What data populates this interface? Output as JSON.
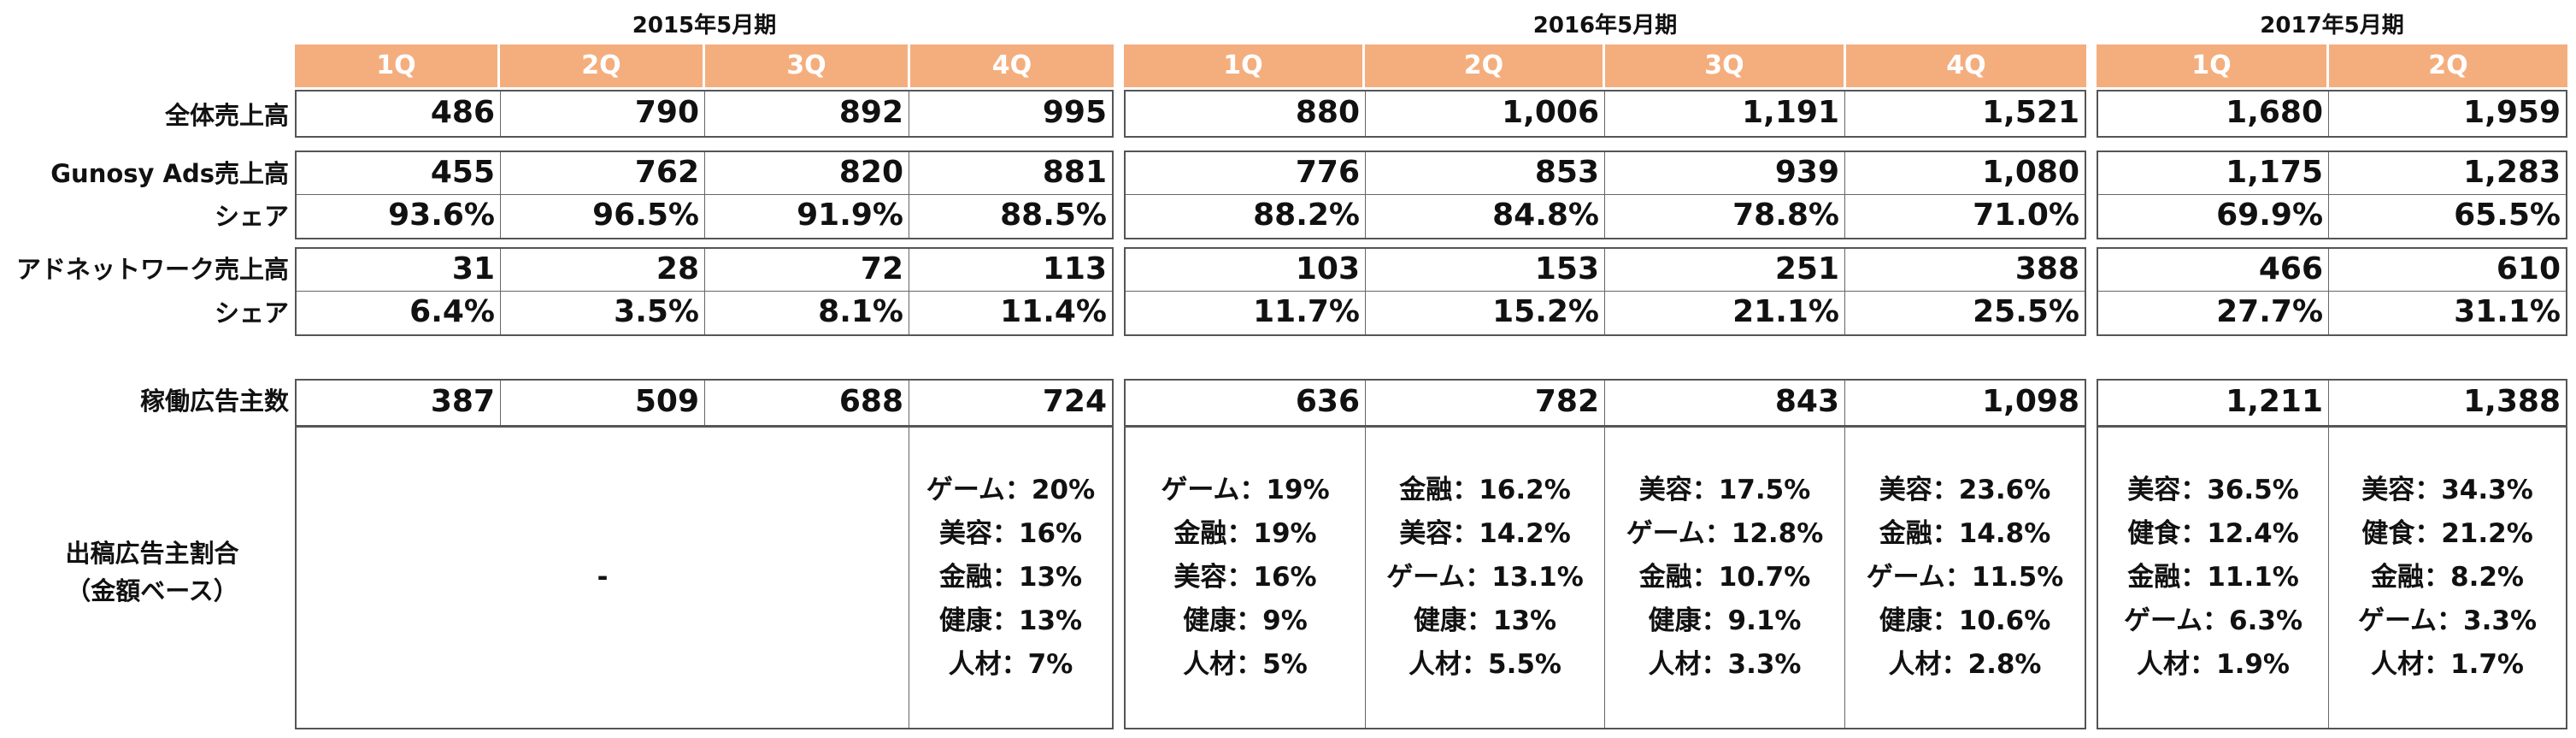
{
  "periods": [
    "2015年5月期",
    "2016年5月期",
    "2017年5月期"
  ],
  "quarters": {
    "fy2015": [
      "1Q",
      "2Q",
      "3Q",
      "4Q"
    ],
    "fy2016": [
      "1Q",
      "2Q",
      "3Q",
      "4Q"
    ],
    "fy2017": [
      "1Q",
      "2Q"
    ]
  },
  "row_labels": {
    "total_sales": "全体売上高",
    "gunosy_ads_sales": "Gunosy Ads売上高",
    "gunosy_share": "シェア",
    "adnetwork_sales": "アドネットワーク売上高",
    "adnetwork_share": "シェア",
    "active_advertisers": "稼働広告主数",
    "advertiser_mix_line1": "出稿広告主割合",
    "advertiser_mix_line2": "（金額ベース）"
  },
  "table": {
    "total_sales": [
      "486",
      "790",
      "892",
      "995",
      "880",
      "1,006",
      "1,191",
      "1,521",
      "1,680",
      "1,959"
    ],
    "gunosy_ads_sales": [
      "455",
      "762",
      "820",
      "881",
      "776",
      "853",
      "939",
      "1,080",
      "1,175",
      "1,283"
    ],
    "gunosy_share": [
      "93.6%",
      "96.5%",
      "91.9%",
      "88.5%",
      "88.2%",
      "84.8%",
      "78.8%",
      "71.0%",
      "69.9%",
      "65.5%"
    ],
    "adnetwork_sales": [
      "31",
      "28",
      "72",
      "113",
      "103",
      "153",
      "251",
      "388",
      "466",
      "610"
    ],
    "adnetwork_share": [
      "6.4%",
      "3.5%",
      "8.1%",
      "11.4%",
      "11.7%",
      "15.2%",
      "21.1%",
      "25.5%",
      "27.7%",
      "31.1%"
    ],
    "active_advertisers": [
      "387",
      "509",
      "688",
      "724",
      "636",
      "782",
      "843",
      "1,098",
      "1,211",
      "1,388"
    ]
  },
  "advertiser_mix": {
    "fy2015_1q_3q": "-",
    "columns": [
      [
        "ゲーム：20%",
        "美容：16%",
        "金融：13%",
        "健康：13%",
        "人材：7%"
      ],
      [
        "ゲーム：19%",
        "金融：19%",
        "美容：16%",
        "健康：9%",
        "人材：5%"
      ],
      [
        "金融：16.2%",
        "美容：14.2%",
        "ゲーム：13.1%",
        "健康：13%",
        "人材：5.5%"
      ],
      [
        "美容：17.5%",
        "ゲーム：12.8%",
        "金融：10.7%",
        "健康：9.1%",
        "人材：3.3%"
      ],
      [
        "美容：23.6%",
        "金融：14.8%",
        "ゲーム：11.5%",
        "健康：10.6%",
        "人材：2.8%"
      ],
      [
        "美容：36.5%",
        "健食：12.4%",
        "金融：11.1%",
        "ゲーム：6.3%",
        "人材：1.9%"
      ],
      [
        "美容：34.3%",
        "健食：21.2%",
        "金融：8.2%",
        "ゲーム：3.3%",
        "人材：1.7%"
      ]
    ]
  },
  "colors": {
    "header_fill": "#F4AE7E",
    "header_text": "#FFFFFF",
    "border": "#555555"
  }
}
